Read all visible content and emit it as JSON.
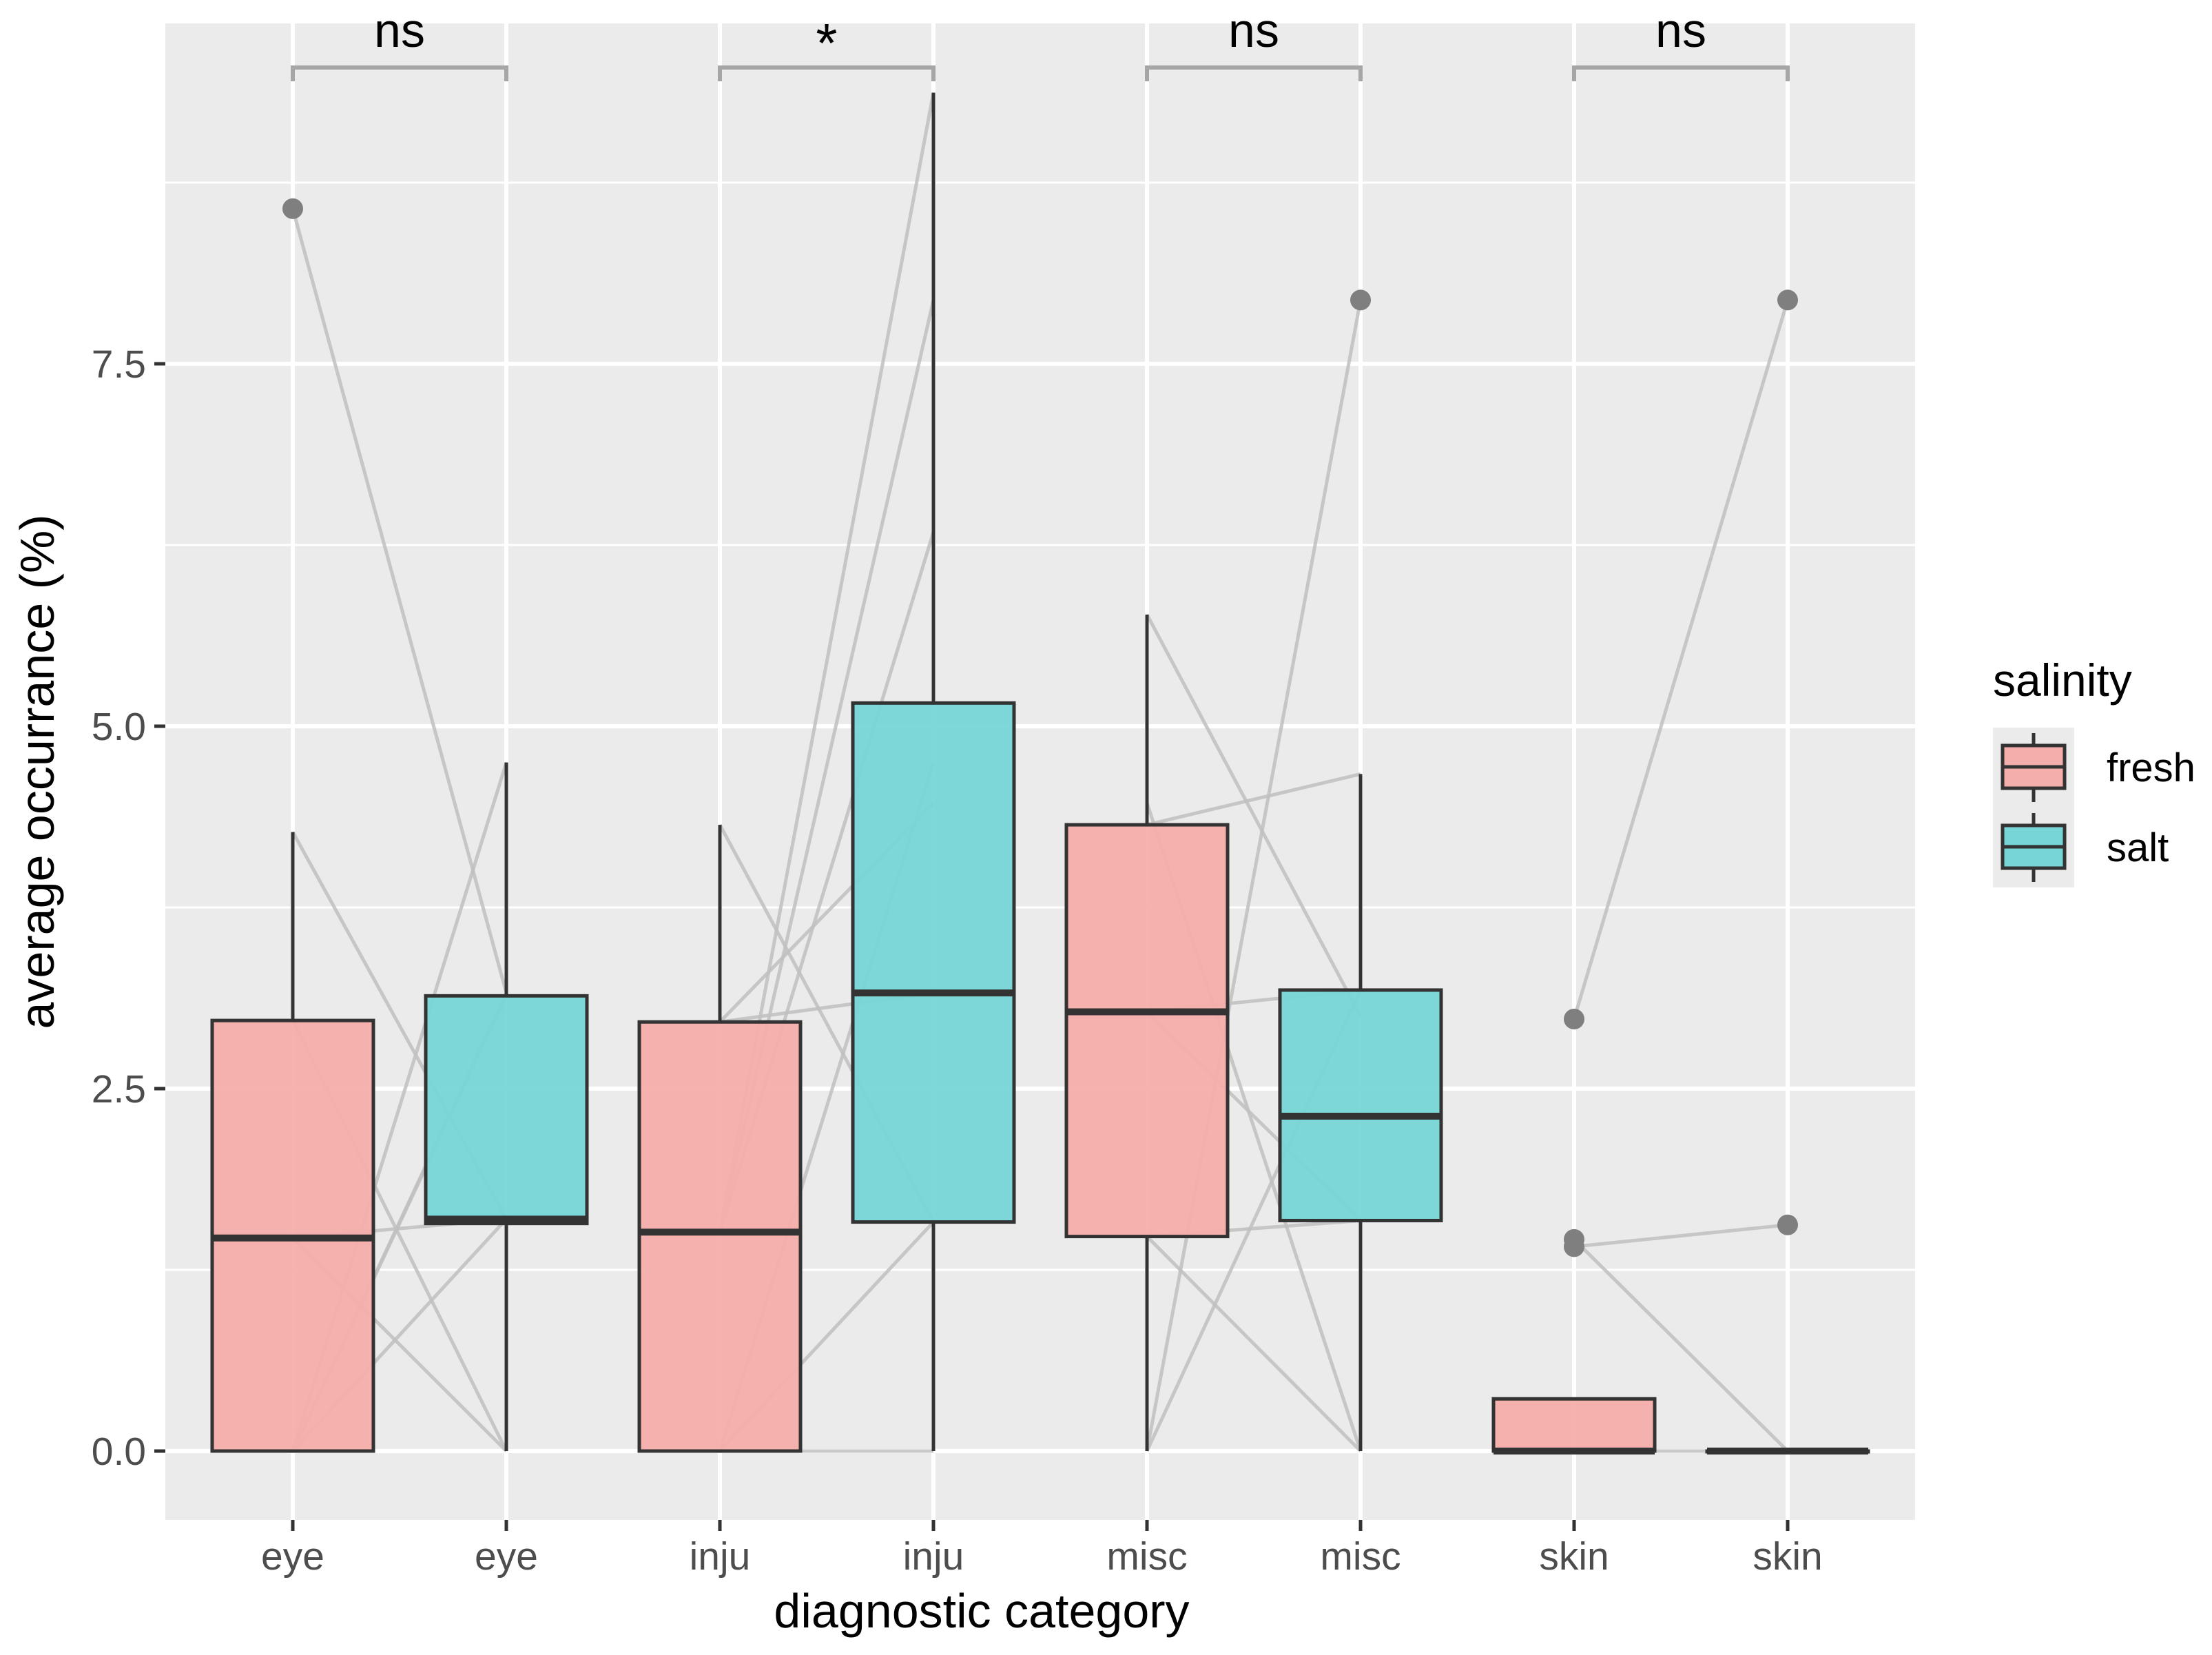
{
  "chart_data": {
    "type": "boxplot",
    "title": "",
    "xlabel": "diagnostic category",
    "ylabel": "average occurrance (%)",
    "ylim": [
      -0.45,
      9.85
    ],
    "yticks": [
      0.0,
      2.5,
      5.0,
      7.5
    ],
    "ytick_labels": [
      "0.0",
      "2.5",
      "5.0",
      "7.5"
    ],
    "grid": true,
    "legend": {
      "title": "salinity",
      "position": "right",
      "entries": [
        {
          "label": "fresh",
          "color": "#F4AEAB"
        },
        {
          "label": "salt",
          "color": "#77D5D7"
        }
      ]
    },
    "boxes": [
      {
        "label": "eye",
        "group": "fresh",
        "whisker_low": 0.0,
        "q1": 0.0,
        "median": 1.47,
        "q3": 2.97,
        "whisker_high": 4.27,
        "outliers": [
          8.57
        ]
      },
      {
        "label": "eye",
        "group": "salt",
        "whisker_low": 0.0,
        "q1": 1.57,
        "median": 1.6,
        "q3": 3.14,
        "whisker_high": 4.75,
        "outliers": []
      },
      {
        "label": "inju",
        "group": "fresh",
        "whisker_low": 0.0,
        "q1": 0.0,
        "median": 1.51,
        "q3": 2.96,
        "whisker_high": 4.32,
        "outliers": []
      },
      {
        "label": "inju",
        "group": "salt",
        "whisker_low": 0.0,
        "q1": 1.58,
        "median": 3.16,
        "q3": 5.16,
        "whisker_high": 9.37,
        "outliers": []
      },
      {
        "label": "misc",
        "group": "fresh",
        "whisker_low": 0.0,
        "q1": 1.48,
        "median": 3.03,
        "q3": 4.32,
        "whisker_high": 5.77,
        "outliers": []
      },
      {
        "label": "misc",
        "group": "salt",
        "whisker_low": 0.0,
        "q1": 1.59,
        "median": 2.31,
        "q3": 3.18,
        "whisker_high": 4.67,
        "outliers": [
          7.94
        ]
      },
      {
        "label": "skin",
        "group": "fresh",
        "whisker_low": 0.0,
        "q1": 0.0,
        "median": 0.0,
        "q3": 0.36,
        "whisker_high": 0.36,
        "outliers": [
          1.41,
          1.46,
          2.98
        ]
      },
      {
        "label": "skin",
        "group": "salt",
        "whisker_low": 0.0,
        "q1": 0.0,
        "median": 0.0,
        "q3": 0.0,
        "whisker_high": 0.0,
        "outliers": [
          1.56,
          7.94
        ]
      }
    ],
    "paired_lines": [
      {
        "from": 0,
        "to": 1,
        "pairs": [
          [
            8.57,
            3.16
          ],
          [
            4.27,
            1.6
          ],
          [
            2.97,
            0.0
          ],
          [
            1.47,
            1.6
          ],
          [
            1.47,
            0.0
          ],
          [
            0.0,
            3.16
          ],
          [
            0.0,
            4.75
          ],
          [
            0.0,
            1.6
          ],
          [
            0.0,
            3.14
          ]
        ]
      },
      {
        "from": 2,
        "to": 3,
        "pairs": [
          [
            4.32,
            1.58
          ],
          [
            2.96,
            3.16
          ],
          [
            2.96,
            4.47
          ],
          [
            1.51,
            9.37
          ],
          [
            1.51,
            7.94
          ],
          [
            1.51,
            6.34
          ],
          [
            0.0,
            4.75
          ],
          [
            0.0,
            1.58
          ],
          [
            0.0,
            0.0
          ]
        ]
      },
      {
        "from": 4,
        "to": 5,
        "pairs": [
          [
            5.77,
            3.0
          ],
          [
            4.47,
            0.0
          ],
          [
            4.32,
            4.67
          ],
          [
            3.03,
            3.18
          ],
          [
            3.03,
            1.59
          ],
          [
            1.48,
            1.59
          ],
          [
            1.48,
            0.0
          ],
          [
            0.0,
            7.94
          ],
          [
            0.0,
            3.18
          ]
        ]
      },
      {
        "from": 6,
        "to": 7,
        "pairs": [
          [
            2.98,
            7.94
          ],
          [
            1.46,
            0.0
          ],
          [
            1.41,
            1.56
          ],
          [
            0.0,
            0.0
          ]
        ]
      }
    ],
    "significance": [
      {
        "from": 0,
        "to": 1,
        "label": "ns"
      },
      {
        "from": 2,
        "to": 3,
        "label": "*"
      },
      {
        "from": 4,
        "to": 5,
        "label": "ns"
      },
      {
        "from": 6,
        "to": 7,
        "label": "ns"
      }
    ]
  },
  "colors": {
    "panel_bg": "#EBEBEB",
    "grid": "#FFFFFF",
    "fresh": "#F4AEAB",
    "salt": "#77D5D7",
    "box_line": "#333333",
    "outlier": "#7F7F7F",
    "paired_line": "#BFBFBF",
    "bracket": "#A6A6A6",
    "axis_text": "#4D4D4D",
    "text": "#000000"
  }
}
